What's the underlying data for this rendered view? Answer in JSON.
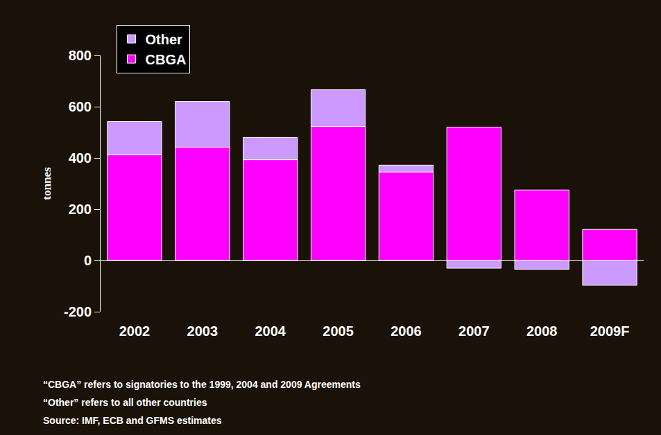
{
  "chart_data": {
    "type": "bar",
    "stacked": true,
    "y_label": "tonnes",
    "categories": [
      "2002",
      "2003",
      "2004",
      "2005",
      "2006",
      "2007",
      "2008",
      "2009F"
    ],
    "series": [
      {
        "name": "CBGA",
        "color": "#ff00ff",
        "values": [
          412,
          442,
          393,
          523,
          345,
          520,
          275,
          121
        ]
      },
      {
        "name": "Other",
        "color": "#cc99ff",
        "values": [
          130,
          178,
          87,
          143,
          27,
          -30,
          -35,
          -97
        ]
      }
    ],
    "ylim": [
      -200,
      800
    ],
    "yticks": [
      -200,
      0,
      200,
      400,
      600,
      800
    ],
    "grid": false,
    "legend": "upper left",
    "notes": [
      "“CBGA” refers to signatories to the 1999, 2004 and 2009 Agreements",
      "“Other” refers to all other countries",
      "Source: IMF, ECB and GFMS estimates"
    ]
  }
}
